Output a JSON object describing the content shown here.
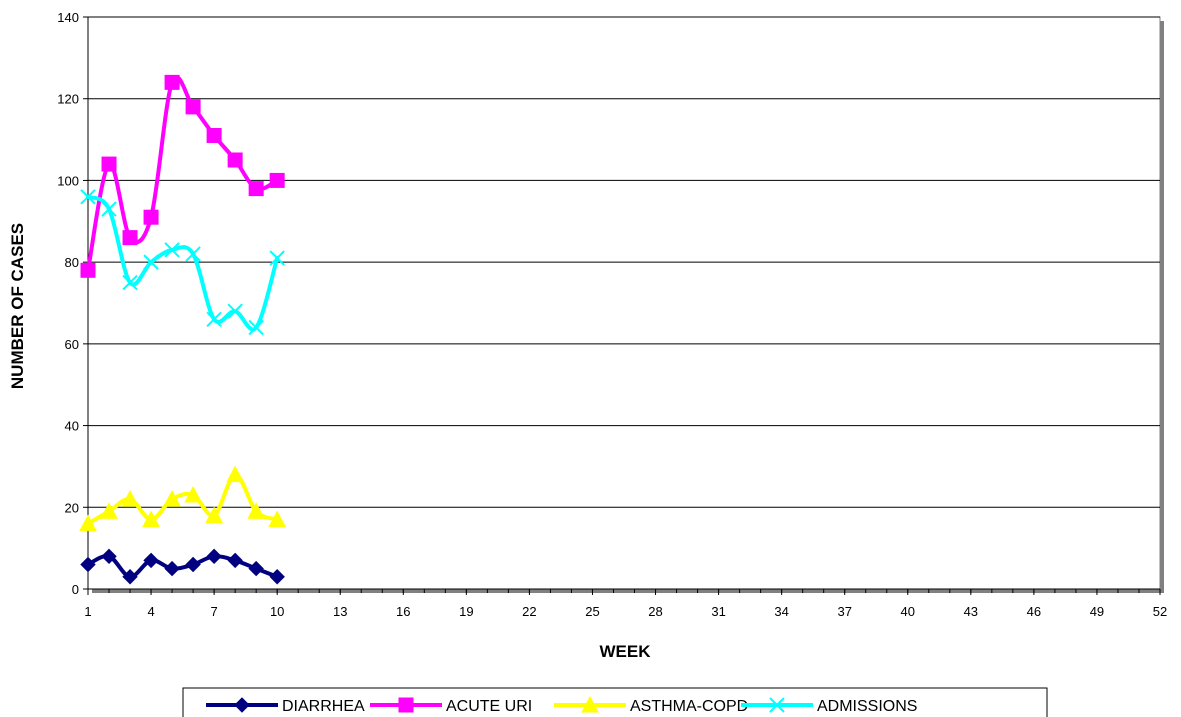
{
  "chart_data": {
    "type": "line",
    "title": "",
    "xlabel": "WEEK",
    "ylabel": "NUMBER OF CASES",
    "x_ticks": [
      1,
      4,
      7,
      10,
      13,
      16,
      19,
      22,
      25,
      28,
      31,
      34,
      37,
      40,
      43,
      46,
      49,
      52
    ],
    "xlim": [
      1,
      52
    ],
    "ylim": [
      0,
      140
    ],
    "y_ticks": [
      0,
      20,
      40,
      60,
      80,
      100,
      120,
      140
    ],
    "grid": "horizontal",
    "legend_position": "bottom",
    "series": [
      {
        "name": "DIARRHEA",
        "color": "#000080",
        "marker": "diamond",
        "x": [
          1,
          2,
          3,
          4,
          5,
          6,
          7,
          8,
          9,
          10
        ],
        "values": [
          6,
          8,
          3,
          7,
          5,
          6,
          8,
          7,
          5,
          3
        ]
      },
      {
        "name": "ACUTE URI",
        "color": "#FF00FF",
        "marker": "square",
        "x": [
          1,
          2,
          3,
          4,
          5,
          6,
          7,
          8,
          9,
          10
        ],
        "values": [
          78,
          104,
          86,
          91,
          124,
          118,
          111,
          105,
          98,
          100
        ]
      },
      {
        "name": "ASTHMA-COPD",
        "color": "#FFFF00",
        "marker": "triangle",
        "x": [
          1,
          2,
          3,
          4,
          5,
          6,
          7,
          8,
          9,
          10
        ],
        "values": [
          16,
          19,
          22,
          17,
          22,
          23,
          18,
          28,
          19,
          17
        ]
      },
      {
        "name": "ADMISSIONS",
        "color": "#00FFFF",
        "marker": "x",
        "x": [
          1,
          2,
          3,
          4,
          5,
          6,
          7,
          8,
          9,
          10
        ],
        "values": [
          96,
          93,
          75,
          80,
          83,
          82,
          66,
          68,
          64,
          81
        ]
      }
    ]
  }
}
